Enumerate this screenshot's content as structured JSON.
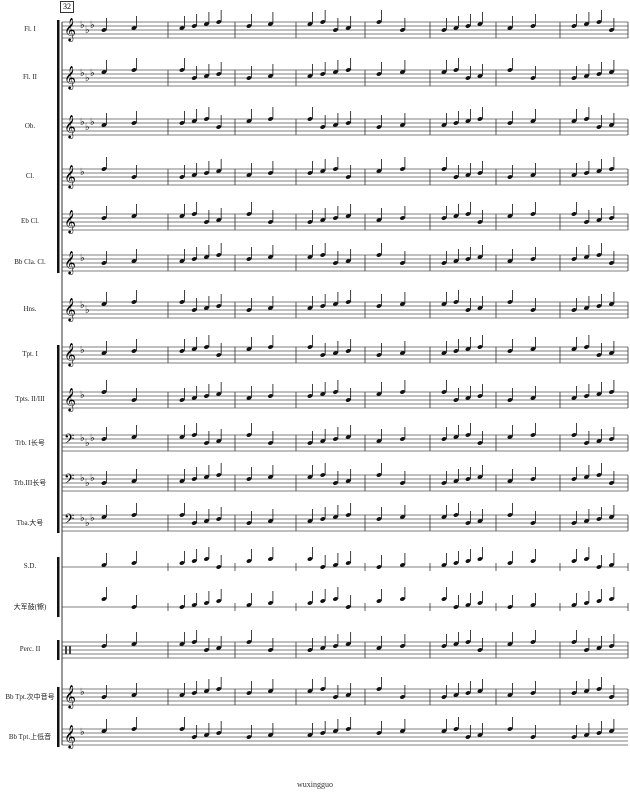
{
  "measure_number": "32",
  "instruments": [
    {
      "label": "Fl. I",
      "clef": "treble",
      "flats": 3,
      "lines": 5
    },
    {
      "label": "Fl. II",
      "clef": "treble",
      "flats": 3,
      "lines": 5
    },
    {
      "label": "Ob.",
      "clef": "treble",
      "flats": 3,
      "lines": 5
    },
    {
      "label": "Cl.",
      "clef": "treble",
      "flats": 1,
      "lines": 5
    },
    {
      "label": "Eb Cl.",
      "clef": "treble",
      "flats": 0,
      "lines": 5
    },
    {
      "label": "Bb Cla. Cl.",
      "clef": "treble",
      "flats": 1,
      "lines": 5
    },
    {
      "label": "Hns.",
      "clef": "treble",
      "flats": 2,
      "lines": 5
    },
    {
      "label": "Tpt. I",
      "clef": "treble",
      "flats": 1,
      "lines": 5
    },
    {
      "label": "Tpts. II/III",
      "clef": "treble",
      "flats": 1,
      "lines": 5
    },
    {
      "label": "Trb. I长号",
      "clef": "bass",
      "flats": 3,
      "lines": 5
    },
    {
      "label": "Trb.III长号",
      "clef": "bass",
      "flats": 3,
      "lines": 5
    },
    {
      "label": "Tba.大号",
      "clef": "bass",
      "flats": 3,
      "lines": 5
    },
    {
      "label": "S.D.",
      "clef": "none",
      "flats": 0,
      "lines": 1
    },
    {
      "label": "大军鼓(镲)",
      "clef": "none",
      "flats": 0,
      "lines": 1
    },
    {
      "label": "Perc. II",
      "clef": "perc",
      "flats": 0,
      "lines": 5
    },
    {
      "label": "Bb Tpt.次中音号",
      "clef": "treble",
      "flats": 1,
      "lines": 5
    },
    {
      "label": "Bb Tpt.上低音",
      "clef": "treble",
      "flats": 1,
      "lines": 5
    }
  ],
  "footer": "wuxingguo"
}
